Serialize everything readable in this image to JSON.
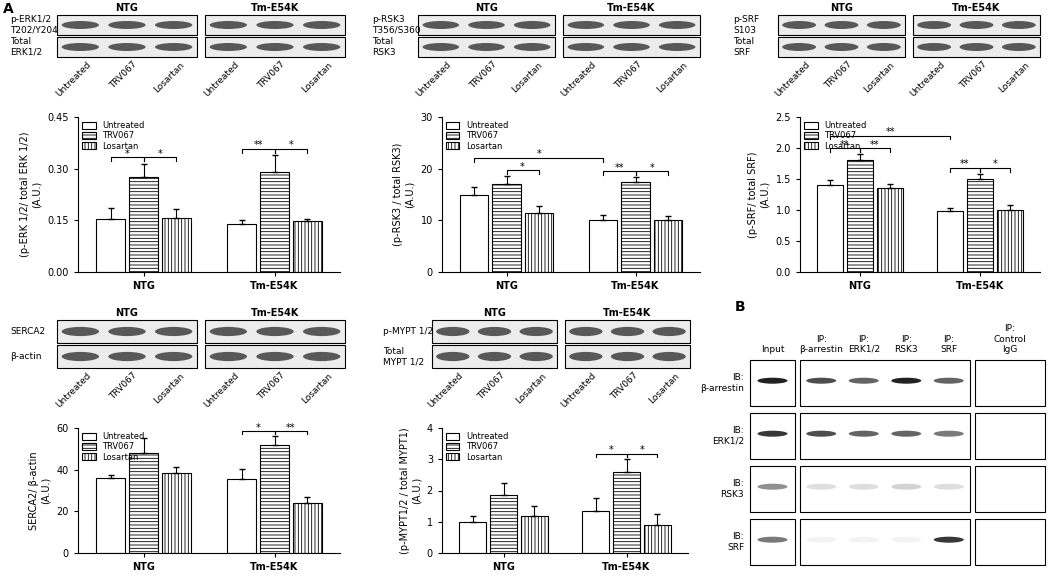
{
  "panel_labels": [
    "A",
    "B"
  ],
  "chart_data": [
    {
      "type": "bar",
      "ylabel": "(p-ERK 1/2/ total ERK 1/2)\n(A.U.)",
      "categories": [
        "NTG",
        "Tm-E54K"
      ],
      "series": [
        {
          "name": "Untreated",
          "color": "#ffffff",
          "values": [
            0.155,
            0.138
          ],
          "errors": [
            0.03,
            0.012
          ]
        },
        {
          "name": "TRV067",
          "color": "#ffffff",
          "values": [
            0.275,
            0.29
          ],
          "errors": [
            0.04,
            0.05
          ]
        },
        {
          "name": "Losartan",
          "color": "#ffffff",
          "values": [
            0.158,
            0.148
          ],
          "errors": [
            0.025,
            0.005
          ]
        }
      ],
      "ylim": [
        0,
        0.45
      ],
      "yticks": [
        {
          "value": 0,
          "label": "0.00"
        },
        {
          "value": 0.15,
          "label": "0.15"
        },
        {
          "value": 0.3,
          "label": "0.30"
        },
        {
          "value": 0.45,
          "label": "0.45"
        }
      ],
      "legend": "upper left",
      "significance": [
        {
          "from": [
            "NTG",
            "Untreated"
          ],
          "to": [
            "NTG",
            "TRV067"
          ],
          "label": "*"
        },
        {
          "from": [
            "NTG",
            "TRV067"
          ],
          "to": [
            "NTG",
            "Losartan"
          ],
          "label": "*"
        },
        {
          "from": [
            "Tm-E54K",
            "Untreated"
          ],
          "to": [
            "Tm-E54K",
            "TRV067"
          ],
          "label": "**"
        },
        {
          "from": [
            "Tm-E54K",
            "TRV067"
          ],
          "to": [
            "Tm-E54K",
            "Losartan"
          ],
          "label": "*"
        }
      ],
      "blot": {
        "groups": [
          "NTG",
          "Tm-E54K"
        ],
        "rows": [
          "p-ERK1/2\nT202/Y204",
          "Total\nERK1/2"
        ],
        "lanes": [
          "Untreated",
          "TRV067",
          "Losartan"
        ]
      }
    },
    {
      "type": "bar",
      "ylabel": "(p-RSK3 / total RSK3)\n(A.U.)",
      "categories": [
        "NTG",
        "Tm-E54K"
      ],
      "series": [
        {
          "name": "Untreated",
          "color": "#ffffff",
          "values": [
            15,
            10
          ],
          "errors": [
            1.5,
            1
          ]
        },
        {
          "name": "TRV067",
          "color": "#ffffff",
          "values": [
            17,
            17.5
          ],
          "errors": [
            1.5,
            0.8
          ]
        },
        {
          "name": "Losartan",
          "color": "#ffffff",
          "values": [
            11.5,
            10
          ],
          "errors": [
            1.2,
            0.8
          ]
        }
      ],
      "ylim": [
        0,
        30
      ],
      "yticks": [
        0,
        10,
        20,
        30
      ],
      "legend": "upper left",
      "significance": [
        {
          "from": [
            "NTG",
            "TRV067"
          ],
          "to": [
            "NTG",
            "Losartan"
          ],
          "label": "*"
        },
        {
          "from": [
            "Tm-E54K",
            "Untreated"
          ],
          "to": [
            "Tm-E54K",
            "TRV067"
          ],
          "label": "**"
        },
        {
          "from": [
            "Tm-E54K",
            "TRV067"
          ],
          "to": [
            "Tm-E54K",
            "Losartan"
          ],
          "label": "*"
        },
        {
          "from": [
            "NTG",
            "Untreated"
          ],
          "to": [
            "Tm-E54K",
            "Untreated"
          ],
          "label": "*"
        }
      ],
      "blot": {
        "groups": [
          "NTG",
          "Tm-E54K"
        ],
        "rows": [
          "p-RSK3\nT356/S360",
          "Total\nRSK3"
        ],
        "lanes": [
          "Untreated",
          "TRV067",
          "Losartan"
        ]
      }
    },
    {
      "type": "bar",
      "ylabel": "(p-SRF/ total SRF)\n(A.U.)",
      "categories": [
        "NTG",
        "Tm-E54K"
      ],
      "series": [
        {
          "name": "Untreated",
          "color": "#ffffff",
          "values": [
            1.4,
            0.98
          ],
          "errors": [
            0.08,
            0.05
          ]
        },
        {
          "name": "TRV067",
          "color": "#ffffff",
          "values": [
            1.8,
            1.5
          ],
          "errors": [
            0.1,
            0.08
          ]
        },
        {
          "name": "Losartan",
          "color": "#ffffff",
          "values": [
            1.35,
            1.0
          ],
          "errors": [
            0.07,
            0.08
          ]
        }
      ],
      "ylim": [
        0,
        2.5
      ],
      "yticks": [
        {
          "value": 0,
          "label": "0.0"
        },
        0.5,
        {
          "value": 1,
          "label": "1.0"
        },
        1.5,
        {
          "value": 2,
          "label": "2.0"
        },
        2.5
      ],
      "legend": "upper left",
      "significance": [
        {
          "from": [
            "NTG",
            "Untreated"
          ],
          "to": [
            "NTG",
            "TRV067"
          ],
          "label": "**"
        },
        {
          "from": [
            "NTG",
            "TRV067"
          ],
          "to": [
            "NTG",
            "Losartan"
          ],
          "label": "**"
        },
        {
          "from": [
            "Tm-E54K",
            "Untreated"
          ],
          "to": [
            "Tm-E54K",
            "TRV067"
          ],
          "label": "**"
        },
        {
          "from": [
            "Tm-E54K",
            "TRV067"
          ],
          "to": [
            "Tm-E54K",
            "Losartan"
          ],
          "label": "*"
        },
        {
          "from": [
            "NTG",
            "Untreated"
          ],
          "to": [
            "Tm-E54K",
            "Untreated"
          ],
          "label": "**"
        }
      ],
      "blot": {
        "groups": [
          "NTG",
          "Tm-E54K"
        ],
        "rows": [
          "p-SRF\nS103",
          "Total\nSRF"
        ],
        "lanes": [
          "Untreated",
          "TRV067",
          "Losartan"
        ]
      }
    },
    {
      "type": "bar",
      "ylabel": "SERCA2/ β-actin\n(A.U.)",
      "categories": [
        "NTG",
        "Tm-E54K"
      ],
      "series": [
        {
          "name": "Untreated",
          "color": "#ffffff",
          "values": [
            36,
            35.5
          ],
          "errors": [
            1.5,
            5
          ]
        },
        {
          "name": "TRV067",
          "color": "#ffffff",
          "values": [
            48,
            52
          ],
          "errors": [
            7,
            4
          ]
        },
        {
          "name": "Losartan",
          "color": "#ffffff",
          "values": [
            38.5,
            24
          ],
          "errors": [
            3,
            3
          ]
        }
      ],
      "ylim": [
        0,
        60
      ],
      "yticks": [
        0,
        20,
        40,
        60
      ],
      "legend": "upper left",
      "significance": [
        {
          "from": [
            "Tm-E54K",
            "Untreated"
          ],
          "to": [
            "Tm-E54K",
            "TRV067"
          ],
          "label": "*"
        },
        {
          "from": [
            "Tm-E54K",
            "TRV067"
          ],
          "to": [
            "Tm-E54K",
            "Losartan"
          ],
          "label": "**"
        }
      ],
      "blot": {
        "groups": [
          "NTG",
          "Tm-E54K"
        ],
        "rows": [
          "SERCA2",
          "β-actin"
        ],
        "lanes": [
          "Untreated",
          "TRV067",
          "Losartan"
        ]
      }
    },
    {
      "type": "bar",
      "ylabel": "(p-MYPT1/2 / total MYPT1)\n(A.U.)",
      "categories": [
        "NTG",
        "Tm-E54K"
      ],
      "series": [
        {
          "name": "Untreated",
          "color": "#ffffff",
          "values": [
            1.0,
            1.35
          ],
          "errors": [
            0.2,
            0.4
          ]
        },
        {
          "name": "TRV067",
          "color": "#ffffff",
          "values": [
            1.85,
            2.6
          ],
          "errors": [
            0.4,
            0.4
          ]
        },
        {
          "name": "Losartan",
          "color": "#ffffff",
          "values": [
            1.2,
            0.9
          ],
          "errors": [
            0.3,
            0.35
          ]
        }
      ],
      "ylim": [
        0,
        4
      ],
      "yticks": [
        0,
        1,
        2,
        3,
        4
      ],
      "legend": "upper left",
      "significance": [
        {
          "from": [
            "Tm-E54K",
            "Untreated"
          ],
          "to": [
            "Tm-E54K",
            "TRV067"
          ],
          "label": "*"
        },
        {
          "from": [
            "Tm-E54K",
            "TRV067"
          ],
          "to": [
            "Tm-E54K",
            "Losartan"
          ],
          "label": "*"
        }
      ],
      "blot": {
        "groups": [
          "NTG",
          "Tm-E54K"
        ],
        "rows": [
          "p-MYPT 1/2",
          "Total\nMYPT 1/2"
        ],
        "lanes": [
          "Untreated",
          "TRV067",
          "Losartan"
        ]
      }
    }
  ],
  "coip": {
    "columns": [
      "Input",
      "IP:\nβ-arrestin",
      "IP:\nERK1/2",
      "IP:\nRSK3",
      "IP:\nSRF",
      "IP:\nControl\nIgG"
    ],
    "rows": [
      "IB:\nβ-arrestin",
      "IB:\nERK1/2",
      "IB:\nRSK3",
      "IB:\nSRF"
    ]
  }
}
